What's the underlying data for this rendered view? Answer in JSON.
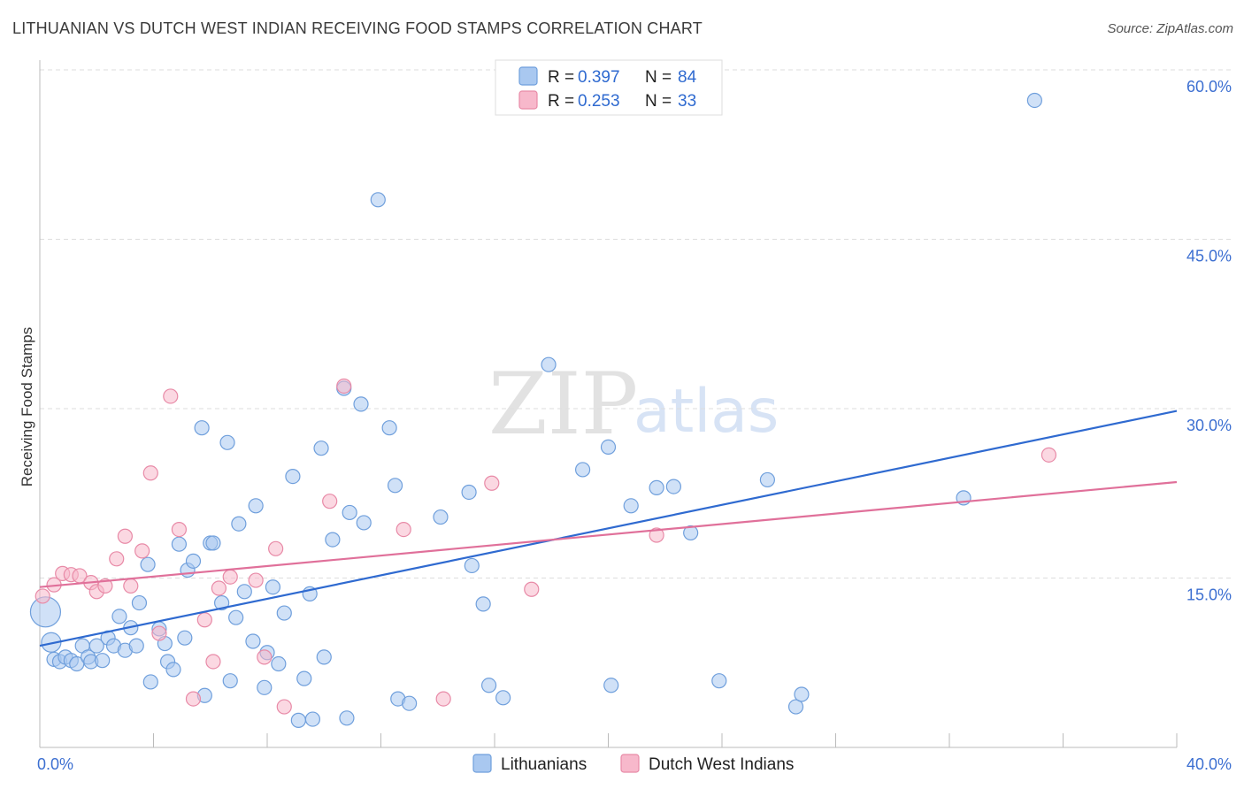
{
  "header": {
    "title": "LITHUANIAN VS DUTCH WEST INDIAN RECEIVING FOOD STAMPS CORRELATION CHART",
    "source": "Source: ZipAtlas.com"
  },
  "watermark": {
    "zip": "ZIP",
    "atlas": "atlas"
  },
  "colors": {
    "blue_fill": "#a9c8f0",
    "blue_stroke": "#6f9fdc",
    "blue_line": "#2f6ad0",
    "pink_fill": "#f7b8cb",
    "pink_stroke": "#e88aa7",
    "pink_line": "#e0709a",
    "grid": "#dddddd",
    "tick_text": "#3c6fd1"
  },
  "legend": {
    "rows": [
      {
        "r_label": "R =",
        "r_value": "0.397",
        "n_label": "N =",
        "n_value": "84"
      },
      {
        "r_label": "R =",
        "r_value": "0.253",
        "n_label": "N =",
        "n_value": "33"
      }
    ]
  },
  "chart_data": {
    "type": "scatter",
    "title": "LITHUANIAN VS DUTCH WEST INDIAN RECEIVING FOOD STAMPS CORRELATION CHART",
    "xlabel": "",
    "ylabel": "Receiving Food Stamps",
    "xlim": [
      0,
      40
    ],
    "ylim": [
      0,
      60
    ],
    "x_tick_labels": [
      "0.0%",
      "40.0%"
    ],
    "y_ticks": [
      15,
      30,
      45,
      60
    ],
    "y_tick_labels": [
      "15.0%",
      "30.0%",
      "45.0%",
      "60.0%"
    ],
    "legend_position": "top-center",
    "series": [
      {
        "name": "Lithuanians",
        "r": 0.397,
        "n": 84,
        "trend": {
          "x0": 0,
          "y0": 9.0,
          "x1": 40,
          "y1": 29.8
        },
        "points": [
          [
            0.2,
            12.0,
            "l"
          ],
          [
            0.4,
            9.3,
            "m"
          ],
          [
            0.5,
            7.8,
            "s"
          ],
          [
            0.7,
            7.6,
            "s"
          ],
          [
            0.9,
            8.0,
            "s"
          ],
          [
            1.1,
            7.7,
            "s"
          ],
          [
            1.3,
            7.4,
            "s"
          ],
          [
            1.5,
            9.0,
            "s"
          ],
          [
            1.7,
            8.0,
            "s"
          ],
          [
            1.8,
            7.6,
            "s"
          ],
          [
            2.0,
            9.0,
            "s"
          ],
          [
            2.2,
            7.7,
            "s"
          ],
          [
            2.4,
            9.7,
            "s"
          ],
          [
            2.6,
            9.0,
            "s"
          ],
          [
            2.8,
            11.6,
            "s"
          ],
          [
            3.0,
            8.6,
            "s"
          ],
          [
            3.2,
            10.6,
            "s"
          ],
          [
            3.4,
            9.0,
            "s"
          ],
          [
            3.5,
            12.8,
            "s"
          ],
          [
            3.8,
            16.2,
            "s"
          ],
          [
            3.9,
            5.8,
            "s"
          ],
          [
            4.2,
            10.5,
            "s"
          ],
          [
            4.4,
            9.2,
            "s"
          ],
          [
            4.5,
            7.6,
            "s"
          ],
          [
            4.7,
            6.9,
            "s"
          ],
          [
            4.9,
            18.0,
            "s"
          ],
          [
            5.1,
            9.7,
            "s"
          ],
          [
            5.2,
            15.7,
            "s"
          ],
          [
            5.4,
            16.5,
            "s"
          ],
          [
            5.7,
            28.3,
            "s"
          ],
          [
            5.8,
            4.6,
            "s"
          ],
          [
            6.0,
            18.1,
            "s"
          ],
          [
            6.1,
            18.1,
            "s"
          ],
          [
            6.4,
            12.8,
            "s"
          ],
          [
            6.6,
            27.0,
            "s"
          ],
          [
            6.7,
            5.9,
            "s"
          ],
          [
            6.9,
            11.5,
            "s"
          ],
          [
            7.0,
            19.8,
            "s"
          ],
          [
            7.2,
            13.8,
            "s"
          ],
          [
            7.5,
            9.4,
            "s"
          ],
          [
            7.6,
            21.4,
            "s"
          ],
          [
            7.9,
            5.3,
            "s"
          ],
          [
            8.0,
            8.4,
            "s"
          ],
          [
            8.2,
            14.2,
            "s"
          ],
          [
            8.4,
            7.4,
            "s"
          ],
          [
            8.6,
            11.9,
            "s"
          ],
          [
            8.9,
            24.0,
            "s"
          ],
          [
            9.1,
            2.4,
            "s"
          ],
          [
            9.3,
            6.1,
            "s"
          ],
          [
            9.5,
            13.6,
            "s"
          ],
          [
            9.6,
            2.5,
            "s"
          ],
          [
            9.9,
            26.5,
            "s"
          ],
          [
            10.0,
            8.0,
            "s"
          ],
          [
            10.3,
            18.4,
            "s"
          ],
          [
            10.7,
            31.8,
            "s"
          ],
          [
            10.8,
            2.6,
            "s"
          ],
          [
            10.9,
            20.8,
            "s"
          ],
          [
            11.3,
            30.4,
            "s"
          ],
          [
            11.4,
            19.9,
            "s"
          ],
          [
            11.9,
            48.5,
            "s"
          ],
          [
            12.3,
            28.3,
            "s"
          ],
          [
            12.5,
            23.2,
            "s"
          ],
          [
            12.6,
            4.3,
            "s"
          ],
          [
            13.0,
            3.9,
            "s"
          ],
          [
            14.1,
            20.4,
            "s"
          ],
          [
            15.1,
            22.6,
            "s"
          ],
          [
            15.2,
            16.1,
            "s"
          ],
          [
            15.6,
            12.7,
            "s"
          ],
          [
            15.8,
            5.5,
            "s"
          ],
          [
            16.3,
            4.4,
            "s"
          ],
          [
            17.9,
            33.9,
            "s"
          ],
          [
            19.1,
            24.6,
            "s"
          ],
          [
            20.0,
            26.6,
            "s"
          ],
          [
            20.1,
            5.5,
            "s"
          ],
          [
            20.8,
            21.4,
            "s"
          ],
          [
            21.7,
            23.0,
            "s"
          ],
          [
            22.3,
            23.1,
            "s"
          ],
          [
            22.9,
            19.0,
            "s"
          ],
          [
            23.9,
            5.9,
            "s"
          ],
          [
            25.6,
            23.7,
            "s"
          ],
          [
            26.6,
            3.6,
            "s"
          ],
          [
            26.8,
            4.7,
            "s"
          ],
          [
            32.5,
            22.1,
            "s"
          ],
          [
            35.0,
            57.3,
            "s"
          ]
        ]
      },
      {
        "name": "Dutch West Indians",
        "r": 0.253,
        "n": 33,
        "trend": {
          "x0": 0,
          "y0": 14.2,
          "x1": 40,
          "y1": 23.5
        },
        "points": [
          [
            0.1,
            13.4,
            "s"
          ],
          [
            0.5,
            14.4,
            "s"
          ],
          [
            0.8,
            15.4,
            "s"
          ],
          [
            1.1,
            15.3,
            "s"
          ],
          [
            1.4,
            15.2,
            "s"
          ],
          [
            1.8,
            14.6,
            "s"
          ],
          [
            2.0,
            13.8,
            "s"
          ],
          [
            2.3,
            14.3,
            "s"
          ],
          [
            2.7,
            16.7,
            "s"
          ],
          [
            3.0,
            18.7,
            "s"
          ],
          [
            3.2,
            14.3,
            "s"
          ],
          [
            3.6,
            17.4,
            "s"
          ],
          [
            3.9,
            24.3,
            "s"
          ],
          [
            4.2,
            10.1,
            "s"
          ],
          [
            4.6,
            31.1,
            "s"
          ],
          [
            4.9,
            19.3,
            "s"
          ],
          [
            5.4,
            4.3,
            "s"
          ],
          [
            5.8,
            11.3,
            "s"
          ],
          [
            6.1,
            7.6,
            "s"
          ],
          [
            6.3,
            14.1,
            "s"
          ],
          [
            6.7,
            15.1,
            "s"
          ],
          [
            7.6,
            14.8,
            "s"
          ],
          [
            7.9,
            8.0,
            "s"
          ],
          [
            8.3,
            17.6,
            "s"
          ],
          [
            8.6,
            3.6,
            "s"
          ],
          [
            10.2,
            21.8,
            "s"
          ],
          [
            10.7,
            32.0,
            "s"
          ],
          [
            12.8,
            19.3,
            "s"
          ],
          [
            14.2,
            4.3,
            "s"
          ],
          [
            15.9,
            23.4,
            "s"
          ],
          [
            17.3,
            14.0,
            "s"
          ],
          [
            21.7,
            18.8,
            "s"
          ],
          [
            35.5,
            25.9,
            "s"
          ]
        ]
      }
    ]
  }
}
